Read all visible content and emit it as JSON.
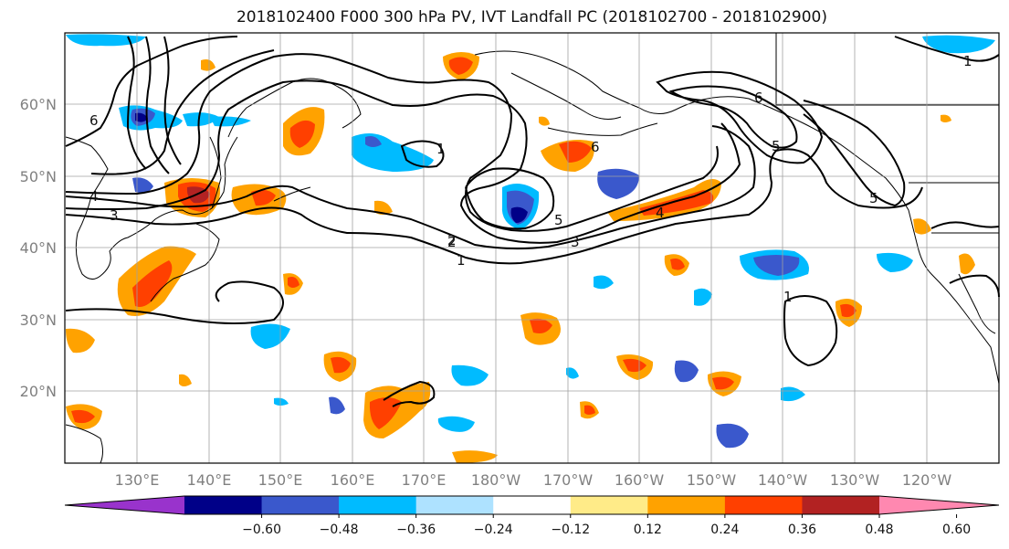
{
  "title": "2018102400 F000 300 hPa PV, IVT Landfall PC (2018102700 - 2018102900)",
  "map": {
    "lat_labels": [
      "60°N",
      "50°N",
      "40°N",
      "30°N",
      "20°N"
    ],
    "lon_labels": [
      "130°E",
      "140°E",
      "150°E",
      "160°E",
      "170°E",
      "180°W",
      "170°W",
      "160°W",
      "150°W",
      "140°W",
      "130°W",
      "120°W"
    ],
    "contour_labels": [
      "6",
      "4",
      "3",
      "2",
      "1",
      "5",
      "6",
      "5",
      "4",
      "3",
      "2",
      "1",
      "1",
      "5",
      "6",
      "1"
    ],
    "colors": {
      "ocean": "#ffffff",
      "coast": "#000000",
      "grid": "#a0a0a0"
    }
  },
  "colorbar": {
    "ticks": [
      "−0.60",
      "−0.48",
      "−0.36",
      "−0.24",
      "−0.12",
      "0.12",
      "0.24",
      "0.36",
      "0.48",
      "0.60"
    ],
    "colors": [
      "#9933cc",
      "#000088",
      "#3a58cc",
      "#00bbff",
      "#aee2ff",
      "#ffffff",
      "#ffeb88",
      "#ffa200",
      "#ff4000",
      "#b22222",
      "#ff88b0"
    ]
  }
}
